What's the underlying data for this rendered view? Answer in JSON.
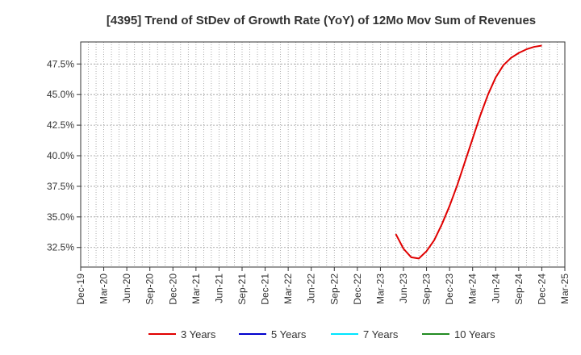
{
  "chart_data": {
    "type": "line",
    "title": "[4395]  Trend of StDev of Growth Rate (YoY) of 12Mo Mov Sum of Revenues",
    "xlabel": "",
    "ylabel": "",
    "x_ticks": [
      "Dec-19",
      "Mar-20",
      "Jun-20",
      "Sep-20",
      "Dec-20",
      "Mar-21",
      "Jun-21",
      "Sep-21",
      "Dec-21",
      "Mar-22",
      "Jun-22",
      "Sep-22",
      "Dec-22",
      "Mar-23",
      "Jun-23",
      "Sep-23",
      "Dec-23",
      "Mar-24",
      "Jun-24",
      "Sep-24",
      "Dec-24",
      "Mar-25"
    ],
    "y_ticks": [
      {
        "value": 32.5,
        "label": "32.5%"
      },
      {
        "value": 35.0,
        "label": "35.0%"
      },
      {
        "value": 37.5,
        "label": "37.5%"
      },
      {
        "value": 40.0,
        "label": "40.0%"
      },
      {
        "value": 42.5,
        "label": "42.5%"
      },
      {
        "value": 45.0,
        "label": "45.0%"
      },
      {
        "value": 47.5,
        "label": "47.5%"
      }
    ],
    "ylim": [
      30.9,
      49.3
    ],
    "grid": true,
    "legend_position": "bottom",
    "series": [
      {
        "name": "3 Years",
        "color": "#e00000",
        "points": [
          {
            "x": "May-23",
            "y": 33.6
          },
          {
            "x": "Jun-23",
            "y": 32.4
          },
          {
            "x": "Jul-23",
            "y": 31.7
          },
          {
            "x": "Aug-23",
            "y": 31.6
          },
          {
            "x": "Sep-23",
            "y": 32.2
          },
          {
            "x": "Oct-23",
            "y": 33.1
          },
          {
            "x": "Nov-23",
            "y": 34.4
          },
          {
            "x": "Dec-23",
            "y": 35.9
          },
          {
            "x": "Jan-24",
            "y": 37.6
          },
          {
            "x": "Feb-24",
            "y": 39.5
          },
          {
            "x": "Mar-24",
            "y": 41.4
          },
          {
            "x": "Apr-24",
            "y": 43.3
          },
          {
            "x": "May-24",
            "y": 45.0
          },
          {
            "x": "Jun-24",
            "y": 46.4
          },
          {
            "x": "Jul-24",
            "y": 47.4
          },
          {
            "x": "Aug-24",
            "y": 48.0
          },
          {
            "x": "Sep-24",
            "y": 48.4
          },
          {
            "x": "Oct-24",
            "y": 48.7
          },
          {
            "x": "Nov-24",
            "y": 48.9
          },
          {
            "x": "Dec-24",
            "y": 49.0
          }
        ]
      },
      {
        "name": "5 Years",
        "color": "#0000cc",
        "points": []
      },
      {
        "name": "7 Years",
        "color": "#00e5ff",
        "points": []
      },
      {
        "name": "10 Years",
        "color": "#228b22",
        "points": []
      }
    ]
  }
}
